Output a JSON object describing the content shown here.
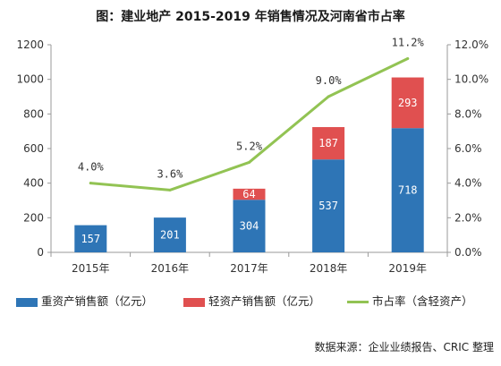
{
  "chart_data": {
    "type": "bar",
    "title": "图：建业地产 2015-2019 年销售情况及河南省市占率",
    "categories": [
      "2015年",
      "2016年",
      "2017年",
      "2018年",
      "2019年"
    ],
    "y_left": {
      "min": 0,
      "max": 1200,
      "ticks": [
        "0",
        "200",
        "400",
        "600",
        "800",
        "1000",
        "1200"
      ]
    },
    "y_right": {
      "min": 0,
      "max": 12,
      "ticks": [
        "0.0%",
        "2.0%",
        "4.0%",
        "6.0%",
        "8.0%",
        "10.0%",
        "12.0%"
      ]
    },
    "series": [
      {
        "name": "重资产销售额（亿元）",
        "kind": "bar",
        "stack": "sales",
        "color": "#2e75b6",
        "values": [
          157,
          201,
          304,
          537,
          718
        ],
        "labels": [
          "157",
          "201",
          "304",
          "537",
          "718"
        ]
      },
      {
        "name": "轻资产销售额（亿元）",
        "kind": "bar",
        "stack": "sales",
        "color": "#e05050",
        "values": [
          0,
          0,
          64,
          187,
          293
        ],
        "labels": [
          "",
          "",
          "64",
          "187",
          "293"
        ]
      },
      {
        "name": "市占率（含轻资产）",
        "kind": "line",
        "axis": "right",
        "color": "#92c353",
        "values": [
          4.0,
          3.6,
          5.2,
          9.0,
          11.2
        ],
        "labels": [
          "4.0%",
          "3.6%",
          "5.2%",
          "9.0%",
          "11.2%"
        ]
      }
    ],
    "legend_position": "bottom",
    "grid": false
  },
  "source_text": "数据来源：企业业绩报告、CRIC 整理"
}
